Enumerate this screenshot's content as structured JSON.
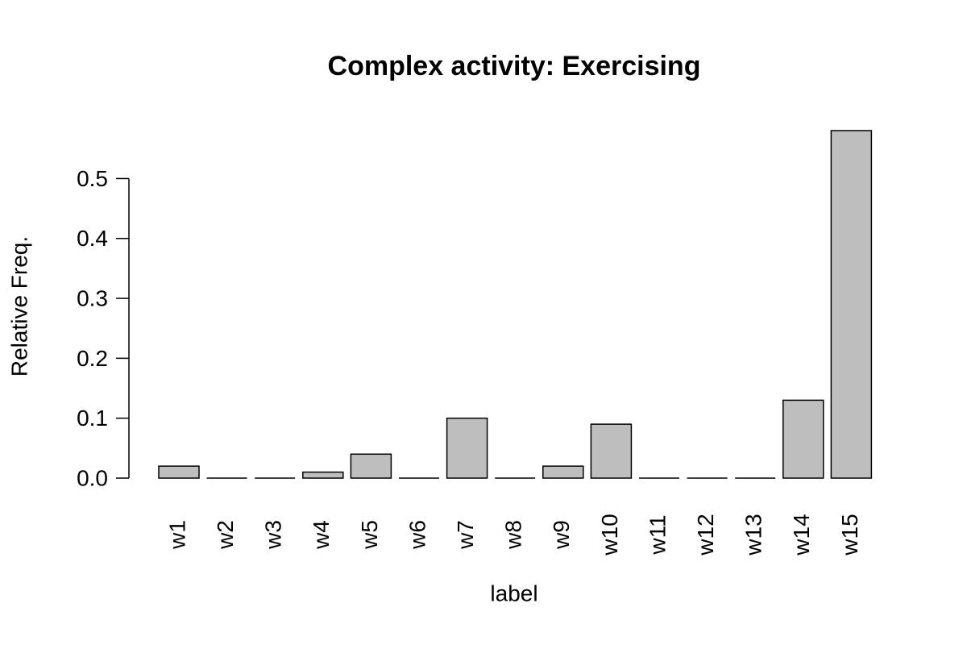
{
  "chart_data": {
    "type": "bar",
    "title": "Complex activity: Exercising",
    "x_label": "label",
    "y_label": "Relative Freq.",
    "categories": [
      "w1",
      "w2",
      "w3",
      "w4",
      "w5",
      "w6",
      "w7",
      "w8",
      "w9",
      "w10",
      "w11",
      "w12",
      "w13",
      "w14",
      "w15"
    ],
    "values": [
      0.02,
      0,
      0,
      0.01,
      0.04,
      0,
      0.1,
      0,
      0.02,
      0.09,
      0,
      0,
      0,
      0.13,
      0.58
    ],
    "color": "#bebebe",
    "ylim": [
      0,
      0.58
    ],
    "yticks": [
      {
        "value": 0,
        "label": "0.0"
      },
      0.1,
      0.2,
      0.3,
      0.4,
      0.5
    ]
  }
}
